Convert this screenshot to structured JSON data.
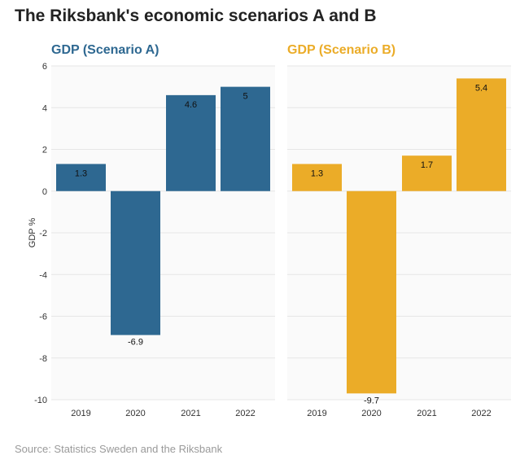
{
  "title": "The Riksbank's economic scenarios A and B",
  "source": "Source: Statistics Sweden and the Riksbank",
  "chart_data": [
    {
      "type": "bar",
      "title": "GDP (Scenario A)",
      "ylabel": "GDP %",
      "xlabel": "",
      "categories": [
        "2019",
        "2020",
        "2021",
        "2022"
      ],
      "values": [
        1.3,
        -6.9,
        4.6,
        5
      ],
      "value_labels": [
        "1.3",
        "-6.9",
        "4.6",
        "5"
      ],
      "ylim": [
        -10,
        6
      ],
      "yticks": [
        "6",
        "4",
        "2",
        "0",
        "-2",
        "-4",
        "-6",
        "-8",
        "-10"
      ],
      "color": "#2e6891",
      "grid": true
    },
    {
      "type": "bar",
      "title": "GDP (Scenario B)",
      "ylabel": "",
      "xlabel": "",
      "categories": [
        "2019",
        "2020",
        "2021",
        "2022"
      ],
      "values": [
        1.3,
        -9.7,
        1.7,
        5.4
      ],
      "value_labels": [
        "1.3",
        "-9.7",
        "1.7",
        "5.4"
      ],
      "ylim": [
        -10,
        6
      ],
      "color": "#ebac28",
      "grid": true
    }
  ]
}
